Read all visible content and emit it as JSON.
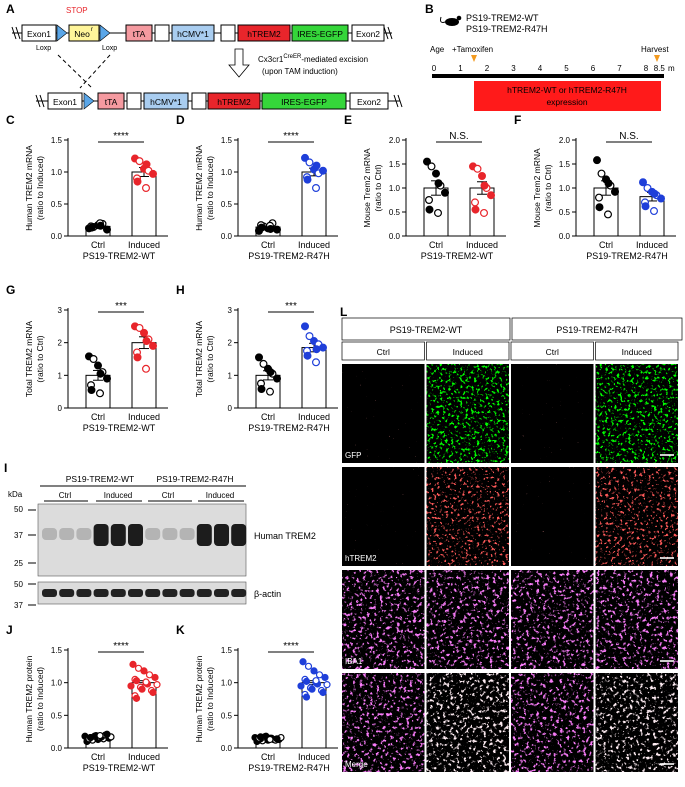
{
  "panels": {
    "A": {
      "letter": "A",
      "top_row": [
        "Exon1",
        "Neo",
        "tTA",
        "hCMV*1",
        "hTREM2",
        "IRES-EGFP",
        "Exon2"
      ],
      "bottom_row": [
        "Exon1",
        "tTA",
        "hCMV*1",
        "hTREM2",
        "IRES-EGFP",
        "Exon2"
      ],
      "neo_superscript": "r",
      "stop_label": "STOP",
      "loxp_left": "Loxp",
      "loxp_right": "Loxp",
      "excision_line1_prefix": "Cx3cr1",
      "excision_line1_sup": "CreER",
      "excision_line1_suffix": "-mediated excision",
      "excision_line2": "(upon TAM induction)"
    },
    "B": {
      "letter": "B",
      "mouse_line1": "PS19-TREM2-WT",
      "mouse_line2": "PS19-TREM2-R47H",
      "age_label": "Age",
      "unit": "m",
      "ticks": [
        "0",
        "1",
        "2",
        "3",
        "4",
        "5",
        "6",
        "7",
        "8",
        "8.5"
      ],
      "tamoxifen_label": "+Tamoxifen",
      "harvest_label": "Harvest",
      "bar_line1": "hTREM2-WT or hTREM2-R47H",
      "bar_line2": "expression"
    },
    "L": {
      "letter": "L",
      "group1": "PS19-TREM2-WT",
      "group2": "PS19-TREM2-R47H",
      "cols": [
        "Ctrl",
        "Induced",
        "Ctrl",
        "Induced"
      ],
      "rows": [
        "GFP",
        "hTREM2",
        "IBA1",
        "Merge"
      ]
    },
    "I": {
      "letter": "I",
      "kda_label": "kDa",
      "group1": "PS19-TREM2-WT",
      "group2": "PS19-TREM2-R47H",
      "sub_labels": [
        "Ctrl",
        "Induced",
        "Ctrl",
        "Induced"
      ],
      "markers": [
        "50",
        "37",
        "25",
        "50",
        "37"
      ],
      "band1_label": "Human TREM2",
      "band2_label": "β-actin"
    }
  },
  "colors": {
    "wt_red": "#e8252b",
    "r47h_blue": "#1f3fd9",
    "neo_yellow": "#fff59a",
    "tta_pink": "#f59aa0",
    "hcmv_blue": "#a9cdf0",
    "htrem2_red": "#e8252b",
    "ires_green": "#35d63a",
    "loxp_blue": "#5aa6e8",
    "expression_bar": "#ff1a1a",
    "tamoxifen_marker": "#f39a1f"
  },
  "chart_data": [
    {
      "panel": "C",
      "type": "scatter-bar",
      "ylabel": "Human TREM2 mRNA (ratio to Induced)",
      "ylim": [
        0,
        1.5
      ],
      "yticks": [
        "0.0",
        "0.5",
        "1.0",
        "1.5"
      ],
      "categories": [
        "Ctrl",
        "Induced"
      ],
      "group_label": "PS19-TREM2-WT",
      "values": [
        0.15,
        1.0
      ],
      "errors": [
        0.02,
        0.07
      ],
      "significance": "****",
      "color": "#e8252b",
      "points": [
        [
          0.12,
          0.14,
          0.17,
          0.19,
          0.1,
          0.15,
          0.13,
          0.2,
          0.16
        ],
        [
          1.21,
          1.17,
          1.05,
          1.02,
          0.97,
          0.9,
          0.85,
          0.75,
          1.12
        ]
      ]
    },
    {
      "panel": "D",
      "type": "scatter-bar",
      "ylabel": "Human TREM2 mRNA (ratio to Induced)",
      "ylim": [
        0,
        1.5
      ],
      "yticks": [
        "0.0",
        "0.5",
        "1.0",
        "1.5"
      ],
      "categories": [
        "Ctrl",
        "Induced"
      ],
      "group_label": "PS19-TREM2-R47H",
      "values": [
        0.14,
        1.0
      ],
      "errors": [
        0.02,
        0.06
      ],
      "significance": "****",
      "color": "#1f3fd9",
      "points": [
        [
          0.08,
          0.15,
          0.12,
          0.2,
          0.1,
          0.17,
          0.13,
          0.16,
          0.11
        ],
        [
          1.22,
          1.15,
          1.04,
          0.98,
          1.02,
          0.92,
          0.88,
          0.75,
          1.1
        ]
      ]
    },
    {
      "panel": "E",
      "type": "scatter-bar",
      "ylabel": "Mouse Trem2 mRNA (ratio to Ctrl)",
      "ylim": [
        0,
        2.0
      ],
      "yticks": [
        "0.0",
        "0.5",
        "1.0",
        "1.5",
        "2.0"
      ],
      "categories": [
        "Ctrl",
        "Induced"
      ],
      "group_label": "PS19-TREM2-WT",
      "values": [
        1.0,
        1.0
      ],
      "errors": [
        0.15,
        0.13
      ],
      "significance": "N.S.",
      "color": "#e8252b",
      "points": [
        [
          1.55,
          1.45,
          1.3,
          1.05,
          0.9,
          0.75,
          0.55,
          0.48,
          1.1
        ],
        [
          1.45,
          1.4,
          1.25,
          1.0,
          0.85,
          0.7,
          0.55,
          0.48,
          1.05
        ]
      ]
    },
    {
      "panel": "F",
      "type": "scatter-bar",
      "ylabel": "Mouse Trem2 mRNA (ratio to Ctrl)",
      "ylim": [
        0,
        2.0
      ],
      "yticks": [
        "0.0",
        "0.5",
        "1.0",
        "1.5",
        "2.0"
      ],
      "categories": [
        "Ctrl",
        "Induced"
      ],
      "group_label": "PS19-TREM2-R47H",
      "values": [
        1.0,
        0.82
      ],
      "errors": [
        0.15,
        0.09
      ],
      "significance": "N.S.",
      "color": "#1f3fd9",
      "points": [
        [
          1.58,
          1.3,
          1.18,
          1.05,
          0.92,
          0.8,
          0.6,
          0.45,
          1.1
        ],
        [
          1.12,
          1.0,
          0.92,
          0.85,
          0.78,
          0.7,
          0.62,
          0.52,
          0.88
        ]
      ]
    },
    {
      "panel": "G",
      "type": "scatter-bar",
      "ylabel": "Total TREM2 mRNA (ratio to Ctrl)",
      "ylim": [
        0,
        3
      ],
      "yticks": [
        "0",
        "1",
        "2",
        "3"
      ],
      "categories": [
        "Ctrl",
        "Induced"
      ],
      "group_label": "PS19-TREM2-WT",
      "values": [
        1.0,
        2.0
      ],
      "errors": [
        0.15,
        0.18
      ],
      "significance": "***",
      "color": "#e8252b",
      "points": [
        [
          1.58,
          1.5,
          1.3,
          1.1,
          0.9,
          0.7,
          0.55,
          0.45,
          1.05
        ],
        [
          2.5,
          2.45,
          2.3,
          2.1,
          1.9,
          1.7,
          1.55,
          1.2,
          2.05
        ]
      ]
    },
    {
      "panel": "H",
      "type": "scatter-bar",
      "ylabel": "Total TREM2 mRNA (ratio to Ctrl)",
      "ylim": [
        0,
        3
      ],
      "yticks": [
        "0",
        "1",
        "2",
        "3"
      ],
      "categories": [
        "Ctrl",
        "Induced"
      ],
      "group_label": "PS19-TREM2-R47H",
      "values": [
        1.0,
        1.85
      ],
      "errors": [
        0.14,
        0.13
      ],
      "significance": "***",
      "color": "#1f3fd9",
      "points": [
        [
          1.55,
          1.35,
          1.2,
          1.05,
          0.9,
          0.75,
          0.58,
          0.5,
          1.1
        ],
        [
          2.5,
          2.2,
          2.05,
          1.95,
          1.85,
          1.75,
          1.6,
          1.4,
          1.8
        ]
      ]
    },
    {
      "panel": "J",
      "type": "scatter-bar",
      "ylabel": "Human TREM2 protein (ratio to Induced)",
      "ylim": [
        0,
        1.5
      ],
      "yticks": [
        "0.0",
        "0.5",
        "1.0",
        "1.5"
      ],
      "categories": [
        "Ctrl",
        "Induced"
      ],
      "group_label": "PS19-TREM2-WT",
      "values": [
        0.16,
        1.0
      ],
      "errors": [
        0.01,
        0.03
      ],
      "significance": "****",
      "color": "#e8252b",
      "points": [
        [
          0.1,
          0.12,
          0.13,
          0.14,
          0.15,
          0.15,
          0.16,
          0.16,
          0.17,
          0.17,
          0.18,
          0.18,
          0.19,
          0.2,
          0.21,
          0.14,
          0.16,
          0.19
        ],
        [
          1.28,
          1.22,
          1.18,
          1.12,
          1.08,
          1.05,
          1.03,
          1.0,
          0.98,
          0.97,
          0.95,
          0.93,
          0.9,
          0.88,
          0.85,
          0.8,
          0.76,
          1.01
        ]
      ]
    },
    {
      "panel": "K",
      "type": "scatter-bar",
      "ylabel": "Human TREM2 protein (ratio to Induced)",
      "ylim": [
        0,
        1.5
      ],
      "yticks": [
        "0.0",
        "0.5",
        "1.0",
        "1.5"
      ],
      "categories": [
        "Ctrl",
        "Induced"
      ],
      "group_label": "PS19-TREM2-R47H",
      "values": [
        0.14,
        1.0
      ],
      "errors": [
        0.01,
        0.03
      ],
      "significance": "****",
      "color": "#1f3fd9",
      "points": [
        [
          0.1,
          0.11,
          0.12,
          0.13,
          0.13,
          0.14,
          0.14,
          0.15,
          0.15,
          0.16,
          0.16,
          0.17,
          0.18,
          0.12,
          0.14,
          0.15,
          0.17,
          0.13
        ],
        [
          1.32,
          1.25,
          1.18,
          1.12,
          1.08,
          1.05,
          1.02,
          1.0,
          0.98,
          0.97,
          0.95,
          0.92,
          0.9,
          0.88,
          0.85,
          0.82,
          0.78,
          1.03
        ]
      ]
    }
  ]
}
